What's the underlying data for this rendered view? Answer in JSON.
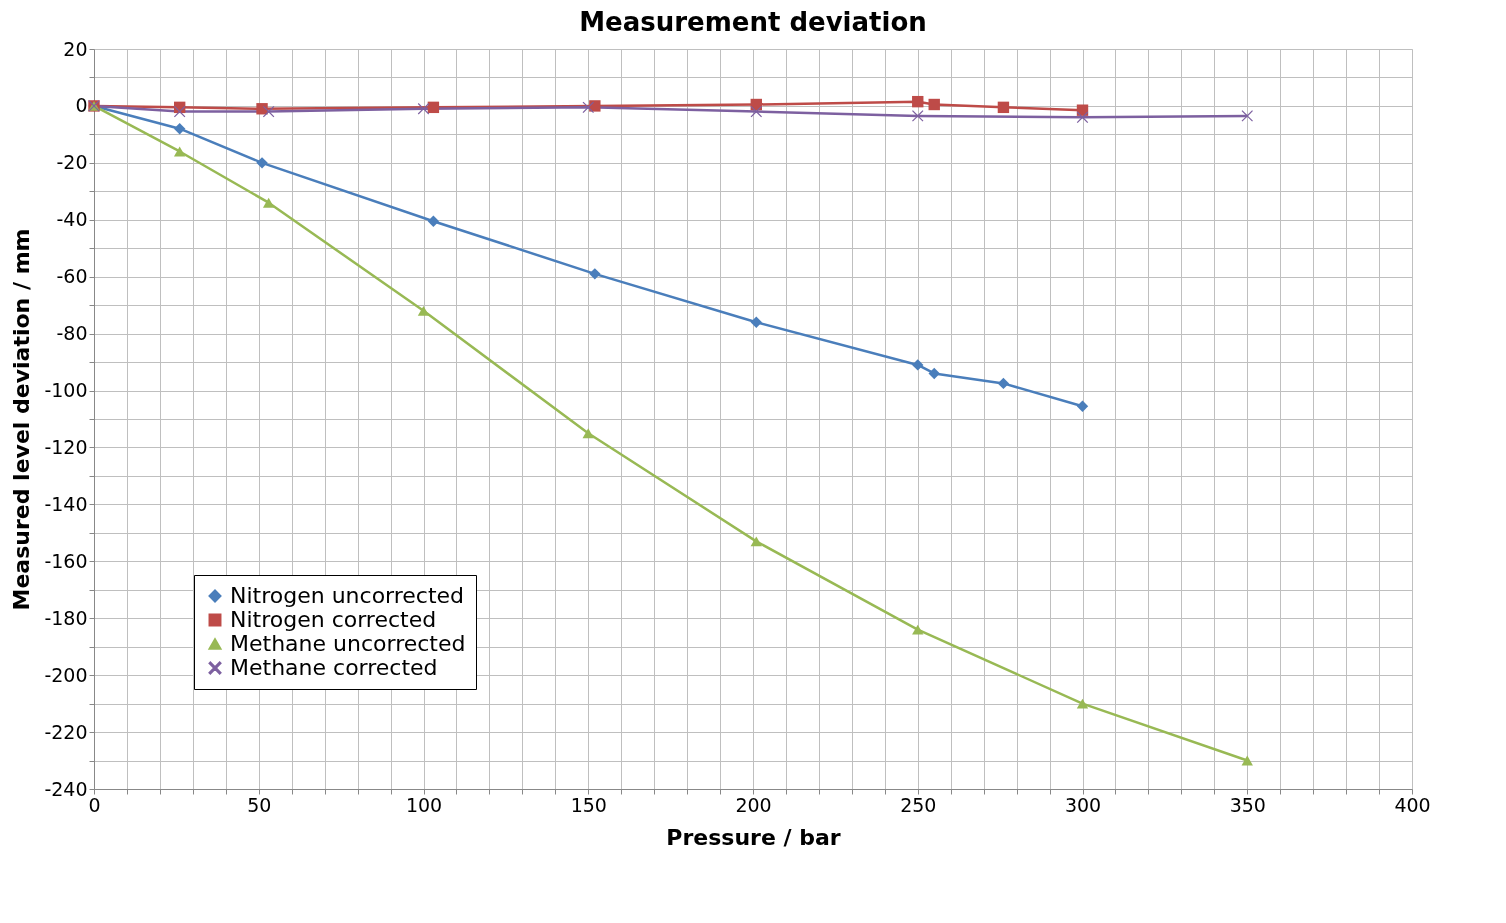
{
  "chart_data": {
    "type": "line",
    "title": "Measurement deviation",
    "xlabel": "Pressure / bar",
    "ylabel": "Measured level deviation / mm",
    "xlim": [
      0,
      400
    ],
    "ylim": [
      -240,
      20
    ],
    "xticks": [
      0,
      {
        "value": 10,
        "label": null
      },
      {
        "value": 20,
        "label": null
      },
      {
        "value": 30,
        "label": null
      },
      {
        "value": 40,
        "label": null
      },
      50,
      {
        "value": 60,
        "label": null
      },
      {
        "value": 70,
        "label": null
      },
      {
        "value": 80,
        "label": null
      },
      {
        "value": 90,
        "label": null
      },
      100,
      {
        "value": 110,
        "label": null
      },
      {
        "value": 120,
        "label": null
      },
      {
        "value": 130,
        "label": null
      },
      {
        "value": 140,
        "label": null
      },
      150,
      {
        "value": 160,
        "label": null
      },
      {
        "value": 170,
        "label": null
      },
      {
        "value": 180,
        "label": null
      },
      {
        "value": 190,
        "label": null
      },
      200,
      {
        "value": 210,
        "label": null
      },
      {
        "value": 220,
        "label": null
      },
      {
        "value": 230,
        "label": null
      },
      {
        "value": 240,
        "label": null
      },
      250,
      {
        "value": 260,
        "label": null
      },
      {
        "value": 270,
        "label": null
      },
      {
        "value": 280,
        "label": null
      },
      {
        "value": 290,
        "label": null
      },
      300,
      {
        "value": 310,
        "label": null
      },
      {
        "value": 320,
        "label": null
      },
      {
        "value": 330,
        "label": null
      },
      {
        "value": 340,
        "label": null
      },
      350,
      {
        "value": 360,
        "label": null
      },
      {
        "value": 370,
        "label": null
      },
      {
        "value": 380,
        "label": null
      },
      {
        "value": 390,
        "label": null
      },
      400
    ],
    "yticks": [
      -240,
      {
        "value": -230,
        "label": null
      },
      -220,
      {
        "value": -210,
        "label": null
      },
      -200,
      {
        "value": -190,
        "label": null
      },
      -180,
      {
        "value": -170,
        "label": null
      },
      -160,
      {
        "value": -150,
        "label": null
      },
      -140,
      {
        "value": -130,
        "label": null
      },
      -120,
      {
        "value": -110,
        "label": null
      },
      -100,
      {
        "value": -90,
        "label": null
      },
      -80,
      {
        "value": -70,
        "label": null
      },
      -60,
      {
        "value": -50,
        "label": null
      },
      -40,
      {
        "value": -30,
        "label": null
      },
      -20,
      {
        "value": -10,
        "label": null
      },
      0,
      {
        "value": 10,
        "label": null
      },
      20
    ],
    "grid": true,
    "legend": "bottom left",
    "line_style": "solid",
    "series": [
      {
        "name": "Nitrogen uncorrected",
        "color": "#4a7ebb",
        "marker": "diamond",
        "x": [
          0,
          26,
          51,
          103,
          152,
          201,
          250,
          255,
          276,
          300
        ],
        "values": [
          0,
          -8,
          -20,
          -40.5,
          -59,
          -76,
          -91,
          -94,
          -97.5,
          -105.5
        ]
      },
      {
        "name": "Nitrogen corrected",
        "color": "#be4b48",
        "marker": "square",
        "x": [
          0,
          26,
          51,
          103,
          152,
          201,
          250,
          255,
          276,
          300
        ],
        "values": [
          0,
          -0.5,
          -1,
          -0.5,
          0,
          0.5,
          1.5,
          0.5,
          -0.5,
          -1.5
        ]
      },
      {
        "name": "Methane uncorrected",
        "color": "#98b954",
        "marker": "triangle",
        "x": [
          0,
          26,
          53,
          100,
          150,
          201,
          250,
          300,
          350
        ],
        "values": [
          0,
          -16,
          -34,
          -72,
          -115,
          -153,
          -184,
          -210,
          -230
        ]
      },
      {
        "name": "Methane corrected",
        "color": "#7d60a0",
        "marker": "cross",
        "x": [
          0,
          26,
          53,
          100,
          150,
          201,
          250,
          300,
          350
        ],
        "values": [
          0,
          -2,
          -2,
          -1,
          -0.5,
          -2,
          -3.5,
          -4,
          -3.5
        ]
      }
    ]
  }
}
